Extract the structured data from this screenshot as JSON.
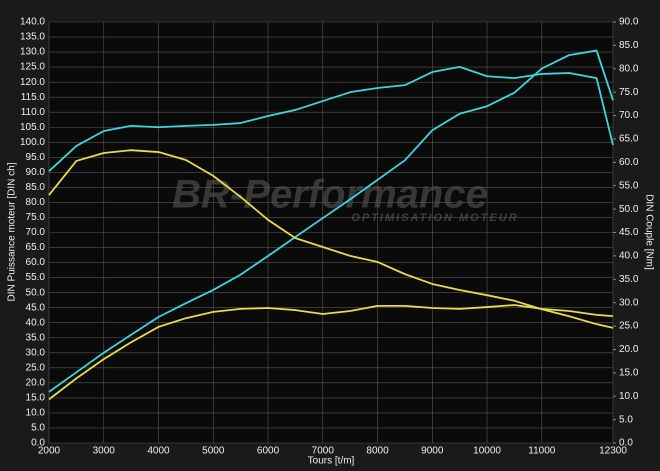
{
  "chart_data": {
    "type": "line",
    "watermark": "BR-Performance",
    "watermark_subtitle": "OPTIMISATION MOTEUR",
    "x_label": "Tours [t/m]",
    "y_label": "DIN Puissance moteur [DIN ch]",
    "y2_label": "DIN Couple [Nm]",
    "x": [
      2000,
      2500,
      3000,
      3500,
      4000,
      4500,
      5000,
      5500,
      6000,
      6500,
      7000,
      7500,
      8000,
      8500,
      9000,
      9500,
      10000,
      10500,
      11000,
      11500,
      12000,
      12300
    ],
    "series": [
      {
        "color": "#3dd6dc",
        "axis": "y",
        "values": [
          17,
          23.5,
          30,
          36,
          41.9,
          46.5,
          50.9,
          56,
          62.2,
          68.5,
          74.8,
          81,
          87.5,
          94,
          104,
          109.5,
          112,
          116.5,
          124.5,
          129,
          130.5,
          114
        ]
      },
      {
        "color": "#3dd6dc",
        "axis": "y2",
        "values": [
          58.1,
          63.5,
          66.7,
          67.8,
          67.5,
          67.8,
          68,
          68.4,
          69.9,
          71.2,
          73.1,
          75,
          75.9,
          76.5,
          79.3,
          80.4,
          78.4,
          78,
          78.9,
          79.1,
          78,
          63.7
        ]
      },
      {
        "color": "#e8dc4a",
        "axis": "y",
        "values": [
          14.5,
          21.5,
          27.9,
          33.5,
          38.6,
          41.5,
          43.6,
          44.6,
          44.9,
          44.2,
          42.9,
          43.9,
          45.6,
          45.6,
          44.9,
          44.6,
          45.2,
          45.9,
          44.6,
          43.9,
          42.6,
          42.2
        ]
      },
      {
        "color": "#e8dc4a",
        "axis": "y2",
        "values": [
          53,
          60.3,
          62,
          62.6,
          62.2,
          60.5,
          57.1,
          52.6,
          47.7,
          43.8,
          41.9,
          40,
          38.7,
          36.1,
          34,
          32.7,
          31.6,
          30.4,
          28.6,
          27.1,
          25.4,
          24.6
        ]
      }
    ],
    "xlim": [
      2000,
      12300
    ],
    "xticks": [
      2000,
      3000,
      4000,
      5000,
      6000,
      7000,
      8000,
      9000,
      10000,
      11000,
      12300
    ],
    "ylim": [
      0,
      140
    ],
    "yticks": [
      {
        "value": 0,
        "label": "0.0"
      },
      {
        "value": 5,
        "label": "5.0"
      },
      {
        "value": 10,
        "label": "10.0"
      },
      {
        "value": 15,
        "label": "15.0"
      },
      {
        "value": 20,
        "label": "20.0"
      },
      {
        "value": 25,
        "label": "25.0"
      },
      {
        "value": 30,
        "label": "30.0"
      },
      {
        "value": 35,
        "label": "35.0"
      },
      {
        "value": 40,
        "label": "40.0"
      },
      {
        "value": 45,
        "label": "45.0"
      },
      {
        "value": 50,
        "label": "50.0"
      },
      {
        "value": 55,
        "label": "55.0"
      },
      {
        "value": 60,
        "label": "60.0"
      },
      {
        "value": 65,
        "label": "65.0"
      },
      {
        "value": 70,
        "label": "70.0"
      },
      {
        "value": 75,
        "label": "75.0"
      },
      {
        "value": 80,
        "label": "80.0"
      },
      {
        "value": 85,
        "label": "85.0"
      },
      {
        "value": 90,
        "label": "90.0"
      },
      {
        "value": 95,
        "label": "95.0"
      },
      {
        "value": 100,
        "label": "100.0"
      },
      {
        "value": 105,
        "label": "105.0"
      },
      {
        "value": 110,
        "label": "110.0"
      },
      {
        "value": 115,
        "label": "115.0"
      },
      {
        "value": 120,
        "label": "120.0"
      },
      {
        "value": 125,
        "label": "125.0"
      },
      {
        "value": 130,
        "label": "130.0"
      },
      {
        "value": 135,
        "label": "135.0"
      },
      {
        "value": 140,
        "label": "140.0"
      }
    ],
    "y2lim": [
      0,
      90
    ],
    "y2ticks": [
      {
        "value": 0,
        "label": "0.0"
      },
      {
        "value": 5,
        "label": "5.0"
      },
      {
        "value": 10,
        "label": "10.0"
      },
      {
        "value": 15,
        "label": "15.0"
      },
      {
        "value": 20,
        "label": "20.0"
      },
      {
        "value": 25,
        "label": "25.0"
      },
      {
        "value": 30,
        "label": "30.0"
      },
      {
        "value": 35,
        "label": "35.0"
      },
      {
        "value": 40,
        "label": "40.0"
      },
      {
        "value": 45,
        "label": "45.0"
      },
      {
        "value": 50,
        "label": "50.0"
      },
      {
        "value": 55,
        "label": "55.0"
      },
      {
        "value": 60,
        "label": "60.0"
      },
      {
        "value": 65,
        "label": "65.0"
      },
      {
        "value": 70,
        "label": "70.0"
      },
      {
        "value": 75,
        "label": "75.0"
      },
      {
        "value": 80,
        "label": "80.0"
      },
      {
        "value": 85,
        "label": "85.0"
      },
      {
        "value": 90,
        "label": "90.0"
      }
    ],
    "grid": true
  }
}
